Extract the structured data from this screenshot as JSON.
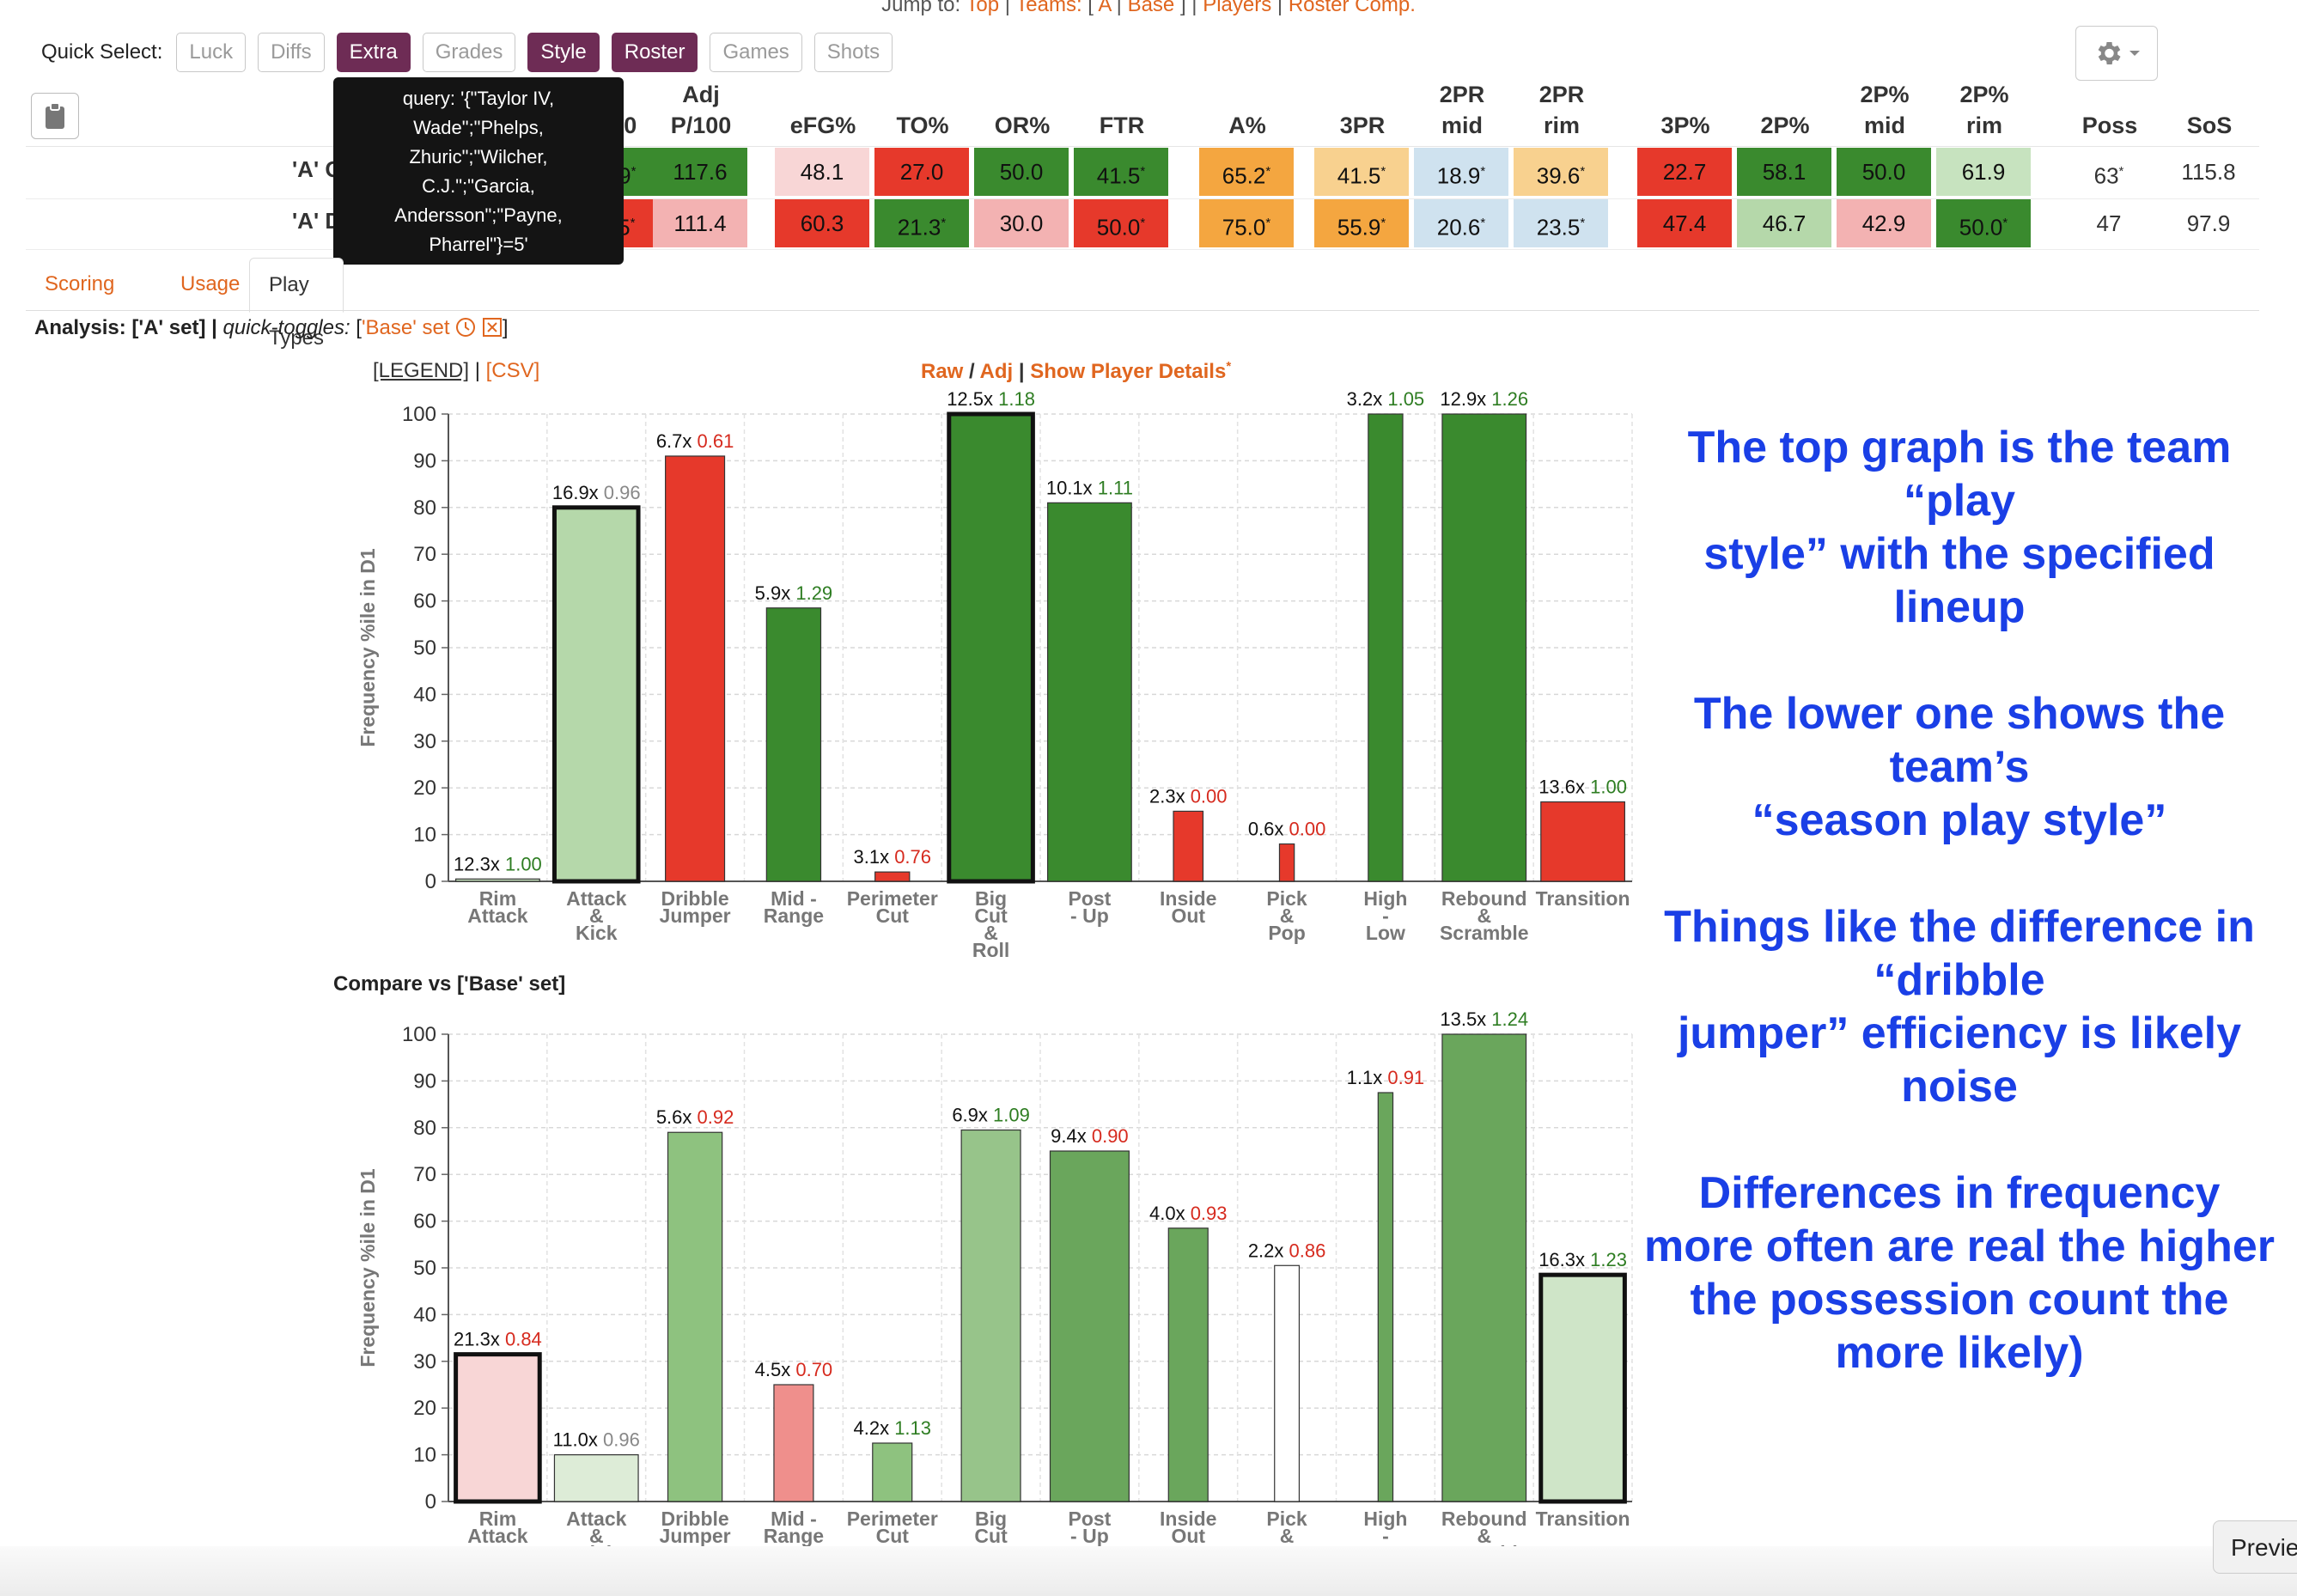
{
  "jump": {
    "prefix": "Jump to:",
    "top": "Top",
    "teams": "Teams:",
    "open": "[",
    "a": "A",
    "base": "Base",
    "close": "]",
    "players": "Players",
    "roster_comp": "Roster Comp."
  },
  "quick_select": {
    "label": "Quick Select:",
    "buttons": [
      {
        "label": "Luck",
        "active": false
      },
      {
        "label": "Diffs",
        "active": false
      },
      {
        "label": "Extra",
        "active": true
      },
      {
        "label": "Grades",
        "active": false
      },
      {
        "label": "Style",
        "active": true
      },
      {
        "label": "Roster",
        "active": true
      },
      {
        "label": "Games",
        "active": false
      },
      {
        "label": "Shots",
        "active": false
      }
    ]
  },
  "icons": {
    "settings": "gear-icon",
    "settings_caret": "caret-down-icon",
    "clipboard": "clipboard-icon",
    "clock": "clock-icon",
    "clear": "x-box-icon"
  },
  "colors": {
    "accent": "#e0661f",
    "quick_select_active": "#6e2c55",
    "annotation": "#1a3fe6",
    "dark_green": "#3a8a2e",
    "mid_green": "#6aa65c",
    "light_green": "#c7e3bf",
    "pale_green": "#b5d8aa",
    "red": "#e6392b",
    "pink": "#f3b2b2",
    "pale_pink": "#f8d6d6",
    "orange": "#f4a640",
    "light_orange": "#f8d18f",
    "light_blue": "#cfe2ef"
  },
  "stats_table": {
    "headers": [
      "P/100",
      "Adj\nP/100",
      "eFG%",
      "TO%",
      "OR%",
      "FTR",
      "A%",
      "3PR",
      "2PR\nmid",
      "2PR\nrim",
      "3P%",
      "2P%",
      "2P%\nmid",
      "2P%\nrim",
      "Poss",
      "SoS"
    ],
    "rows": [
      {
        "label": "'A' Offense",
        "cells": [
          {
            "v": "107.9",
            "star": true,
            "bg": "#3a8a2e",
            "fg": "#111"
          },
          {
            "v": "117.6",
            "star": false,
            "bg": "#3a8a2e",
            "fg": "#111"
          },
          {
            "v": "48.1",
            "star": false,
            "bg": "#f8d6d6",
            "fg": "#111"
          },
          {
            "v": "27.0",
            "star": false,
            "bg": "#e6392b",
            "fg": "#111"
          },
          {
            "v": "50.0",
            "star": false,
            "bg": "#3a8a2e",
            "fg": "#111"
          },
          {
            "v": "41.5",
            "star": true,
            "bg": "#3a8a2e",
            "fg": "#111"
          },
          {
            "v": "65.2",
            "star": true,
            "bg": "#f4a640",
            "fg": "#111"
          },
          {
            "v": "41.5",
            "star": true,
            "bg": "#f8d18f",
            "fg": "#111"
          },
          {
            "v": "18.9",
            "star": true,
            "bg": "#cfe2ef",
            "fg": "#111"
          },
          {
            "v": "39.6",
            "star": true,
            "bg": "#f8d18f",
            "fg": "#111"
          },
          {
            "v": "22.7",
            "star": false,
            "bg": "#e6392b",
            "fg": "#111"
          },
          {
            "v": "58.1",
            "star": false,
            "bg": "#3a8a2e",
            "fg": "#111"
          },
          {
            "v": "50.0",
            "star": false,
            "bg": "#3a8a2e",
            "fg": "#111"
          },
          {
            "v": "61.9",
            "star": false,
            "bg": "#c7e3bf",
            "fg": "#111"
          },
          {
            "v": "63",
            "star": true,
            "bg": "transparent",
            "fg": "#333"
          },
          {
            "v": "115.8",
            "star": false,
            "bg": "transparent",
            "fg": "#333"
          }
        ]
      },
      {
        "label": "'A' Defense",
        "cells": [
          {
            "v": "115.5",
            "star": true,
            "bg": "#e6392b",
            "fg": "#111"
          },
          {
            "v": "111.4",
            "star": false,
            "bg": "#f3b2b2",
            "fg": "#111"
          },
          {
            "v": "60.3",
            "star": false,
            "bg": "#e6392b",
            "fg": "#111"
          },
          {
            "v": "21.3",
            "star": true,
            "bg": "#3a8a2e",
            "fg": "#111"
          },
          {
            "v": "30.0",
            "star": false,
            "bg": "#f3b2b2",
            "fg": "#111"
          },
          {
            "v": "50.0",
            "star": true,
            "bg": "#e6392b",
            "fg": "#111"
          },
          {
            "v": "75.0",
            "star": true,
            "bg": "#f4a640",
            "fg": "#111"
          },
          {
            "v": "55.9",
            "star": true,
            "bg": "#f4a640",
            "fg": "#111"
          },
          {
            "v": "20.6",
            "star": true,
            "bg": "#cfe2ef",
            "fg": "#111"
          },
          {
            "v": "23.5",
            "star": true,
            "bg": "#cfe2ef",
            "fg": "#111"
          },
          {
            "v": "47.4",
            "star": false,
            "bg": "#e6392b",
            "fg": "#111"
          },
          {
            "v": "46.7",
            "star": false,
            "bg": "#b5d8aa",
            "fg": "#111"
          },
          {
            "v": "42.9",
            "star": false,
            "bg": "#f3b2b2",
            "fg": "#111"
          },
          {
            "v": "50.0",
            "star": true,
            "bg": "#3a8a2e",
            "fg": "#111"
          },
          {
            "v": "47",
            "star": false,
            "bg": "transparent",
            "fg": "#333"
          },
          {
            "v": "97.9",
            "star": false,
            "bg": "transparent",
            "fg": "#333"
          }
        ]
      }
    ]
  },
  "tooltip": {
    "text": "query: '{\"Taylor IV,\nWade\";\"Phelps,\nZhuric\";\"Wilcher,\nC.J.\";\"Garcia,\nAndersson\";\"Payne,\nPharrel\"}=5'"
  },
  "tabs": [
    {
      "label": "Scoring",
      "active": false
    },
    {
      "label": "Usage",
      "active": false
    },
    {
      "label": "Play Types",
      "active": true
    }
  ],
  "analysis": {
    "prefix": "Analysis: ['A' set] |",
    "qt_label": "quick-toggles:",
    "open": "[",
    "item": "'Base' set",
    "close": "]"
  },
  "legend_links": {
    "legend": "[LEGEND]",
    "sep": "|",
    "csv": "[CSV]"
  },
  "chart_controls": {
    "raw": "Raw",
    "slash": "/",
    "adj": "Adj",
    "sep": "|",
    "details": "Show Player Details",
    "star": "*"
  },
  "compare_title": "Compare vs ['Base' set]",
  "annotation": {
    "p1": "The top graph is the team\n“play\nstyle” with the specified\nlineup",
    "p2": "The lower one shows the\nteam’s\n“season play style”",
    "p3": "Things like the difference in\n“dribble\njumper” efficiency is likely\nnoise",
    "p4": "Differences in frequency\nmore often are real the higher\nthe possession count the\nmore likely)"
  },
  "preview_label": "Previe",
  "chart_data": [
    {
      "type": "bar",
      "ylabel": "Frequency %ile in D1",
      "ylim": [
        0,
        100
      ],
      "yticks": [
        0,
        10,
        20,
        30,
        40,
        50,
        60,
        70,
        80,
        90,
        100
      ],
      "grid": true,
      "categories": [
        "Rim\nAttack",
        "Attack\n&\nKick",
        "Dribble\nJumper",
        "Mid -\nRange",
        "Perimeter\nCut",
        "Big\nCut\n&\nRoll",
        "Post\n- Up",
        "Inside\nOut",
        "Pick\n&\nPop",
        "High\n-\nLow",
        "Rebound\n&\nScramble",
        "Transition"
      ],
      "values": [
        0.5,
        80,
        91,
        58.5,
        2,
        100,
        81,
        15,
        8,
        100,
        100,
        17
      ],
      "freq_labels": [
        "12.3x",
        "16.9x",
        "6.7x",
        "5.9x",
        "3.1x",
        "12.5x",
        "10.1x",
        "2.3x",
        "0.6x",
        "3.2x",
        "12.9x",
        "13.6x"
      ],
      "eff_labels": [
        "1.00",
        "0.96",
        "0.61",
        "1.29",
        "0.76",
        "1.18",
        "1.11",
        "0.00",
        "0.00",
        "1.05",
        "1.26",
        "1.00"
      ],
      "eff_colors": [
        "#2e7d22",
        "#888888",
        "#d62a1e",
        "#2e7d22",
        "#d62a1e",
        "#2e7d22",
        "#2e7d22",
        "#d62a1e",
        "#d62a1e",
        "#2e7d22",
        "#2e7d22",
        "#2e7d22"
      ],
      "bar_colors": [
        "#c7e3bf",
        "#b5d8aa",
        "#e6392b",
        "#3a8a2e",
        "#e6392b",
        "#3a8a2e",
        "#3a8a2e",
        "#e6392b",
        "#e6392b",
        "#3a8a2e",
        "#3a8a2e",
        "#e6392b"
      ],
      "bar_width_fraction": [
        0.85,
        0.85,
        0.6,
        0.55,
        0.35,
        0.85,
        0.85,
        0.3,
        0.15,
        0.35,
        0.85,
        0.85
      ],
      "bold_outline": [
        false,
        true,
        false,
        false,
        false,
        true,
        false,
        false,
        false,
        false,
        false,
        false
      ]
    },
    {
      "type": "bar",
      "ylabel": "Frequency %ile in D1",
      "ylim": [
        0,
        100
      ],
      "yticks": [
        0,
        10,
        20,
        30,
        40,
        50,
        60,
        70,
        80,
        90,
        100
      ],
      "grid": true,
      "categories": [
        "Rim\nAttack",
        "Attack\n&\nKick",
        "Dribble\nJumper",
        "Mid -\nRange",
        "Perimeter\nCut",
        "Big\nCut\n&\nRoll",
        "Post\n- Up",
        "Inside\nOut",
        "Pick\n&\nPop",
        "High\n-\nLow",
        "Rebound\n&\nScramble",
        "Transition"
      ],
      "values": [
        31.5,
        10,
        79,
        25,
        12.5,
        79.5,
        75,
        58.5,
        50.5,
        87.5,
        100,
        48.5
      ],
      "freq_labels": [
        "21.3x",
        "11.0x",
        "5.6x",
        "4.5x",
        "4.2x",
        "6.9x",
        "9.4x",
        "4.0x",
        "2.2x",
        "1.1x",
        "13.5x",
        "16.3x"
      ],
      "eff_labels": [
        "0.84",
        "0.96",
        "0.92",
        "0.70",
        "1.13",
        "1.09",
        "0.90",
        "0.93",
        "0.86",
        "0.91",
        "1.24",
        "1.23"
      ],
      "eff_colors": [
        "#d62a1e",
        "#888888",
        "#d62a1e",
        "#d62a1e",
        "#2e7d22",
        "#2e7d22",
        "#d62a1e",
        "#d62a1e",
        "#d62a1e",
        "#d62a1e",
        "#2e7d22",
        "#2e7d22"
      ],
      "bar_colors": [
        "#f8d6d6",
        "#ddecd7",
        "#8ec27f",
        "#ef8f8c",
        "#8ec27f",
        "#97c48a",
        "#6aa65c",
        "#6aa65c",
        "#ffffff",
        "#6aa65c",
        "#6aa65c",
        "#cfe5c8"
      ],
      "bar_width_fraction": [
        0.85,
        0.85,
        0.55,
        0.4,
        0.4,
        0.6,
        0.8,
        0.4,
        0.25,
        0.15,
        0.85,
        0.85
      ],
      "bold_outline": [
        true,
        false,
        false,
        false,
        false,
        false,
        false,
        false,
        false,
        false,
        false,
        true
      ]
    }
  ]
}
